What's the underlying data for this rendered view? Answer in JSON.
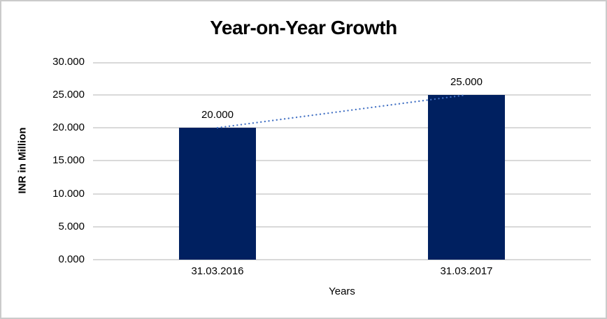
{
  "chart_data": {
    "type": "bar",
    "title": "Year-on-Year Growth",
    "xlabel": "Years",
    "ylabel": "INR in Million",
    "categories": [
      "31.03.2016",
      "31.03.2017"
    ],
    "values": [
      20000,
      25000
    ],
    "data_labels": [
      "20.000",
      "25.000"
    ],
    "ylim": [
      0,
      30000
    ],
    "ytick_step": 5000,
    "ytick_labels": [
      "0.000",
      "5.000",
      "10.000",
      "15.000",
      "20.000",
      "25.000",
      "30.000"
    ],
    "grid": true,
    "legend_position": "none",
    "bar_color": "#002060",
    "gridline_color": "#d9d9d9",
    "axis_line_color": "#d9d9d9",
    "trendline": {
      "style": "dotted",
      "color": "#4472C4",
      "connects": [
        "20.000",
        "25.000"
      ]
    }
  }
}
